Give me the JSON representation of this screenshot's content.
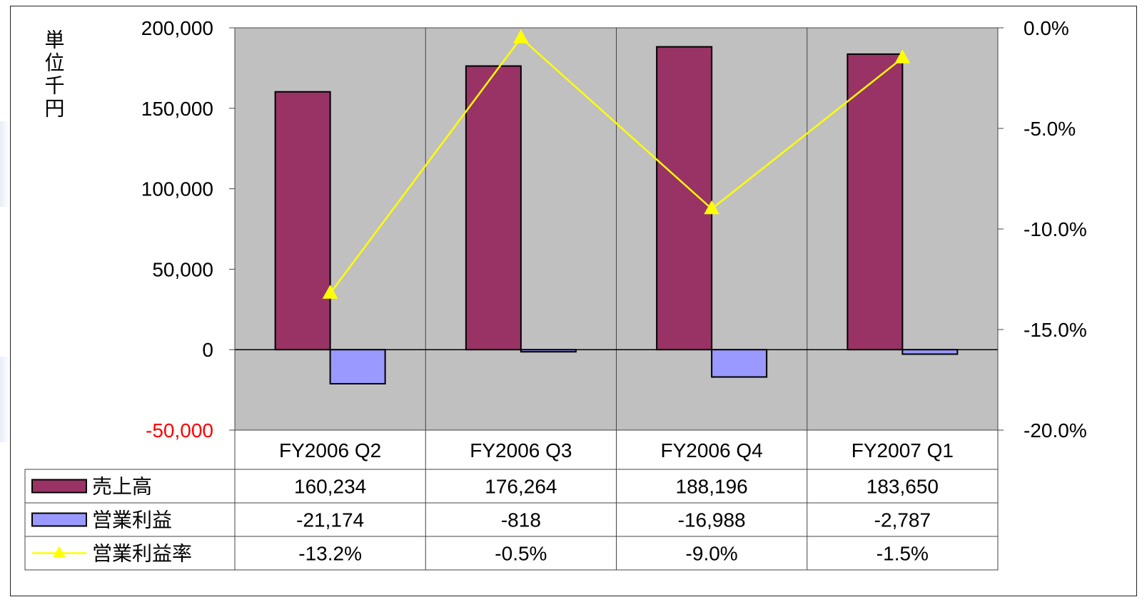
{
  "chart_data": {
    "type": "bar+line",
    "categories": [
      "FY2006 Q2",
      "FY2006 Q3",
      "FY2006 Q4",
      "FY2007 Q1"
    ],
    "series": [
      {
        "name": "売上高",
        "type": "bar",
        "axis": "left",
        "values": [
          160234,
          176264,
          188196,
          183650
        ],
        "labels": [
          "160,234",
          "176,264",
          "188,196",
          "183,650"
        ],
        "color": "#993366"
      },
      {
        "name": "営業利益",
        "type": "bar",
        "axis": "left",
        "values": [
          -21174,
          -818,
          -16988,
          -2787
        ],
        "labels": [
          "-21,174",
          "-818",
          "-16,988",
          "-2,787"
        ],
        "color": "#9999ff"
      },
      {
        "name": "営業利益率",
        "type": "line",
        "axis": "right",
        "values": [
          -13.2,
          -0.5,
          -9.0,
          -1.5
        ],
        "labels": [
          "-13.2%",
          "-0.5%",
          "-9.0%",
          "-1.5%"
        ],
        "color": "#ffff00"
      }
    ],
    "ylabel": "単位千円",
    "ylim": [
      -50000,
      200000
    ],
    "y_ticks": [
      "200,000",
      "150,000",
      "100,000",
      "50,000",
      "0",
      "-50,000"
    ],
    "y_tick_values": [
      200000,
      150000,
      100000,
      50000,
      0,
      -50000
    ],
    "y_negative_tick_color": "#ff0000",
    "y2lim": [
      -20,
      0
    ],
    "y2_ticks": [
      "0.0%",
      "-5.0%",
      "-10.0%",
      "-15.0%",
      "-20.0%"
    ],
    "y2_tick_values": [
      0,
      -5,
      -10,
      -15,
      -20
    ],
    "plot_background": "#c0c0c0",
    "grid": "vertical category separators",
    "legend": "data table below plot"
  }
}
